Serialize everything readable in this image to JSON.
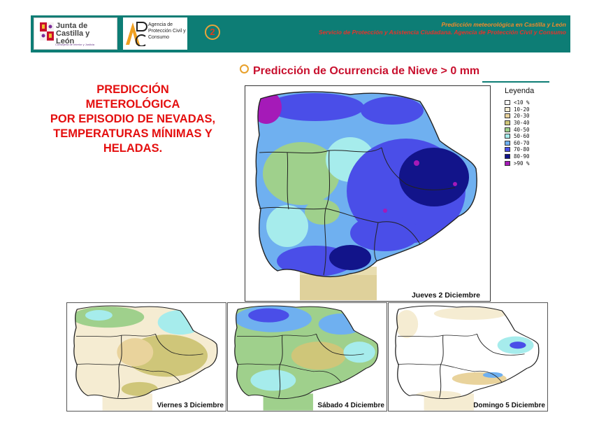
{
  "header": {
    "org_name": "Junta de Castilla y León",
    "org_subtitle": "Consejería de Interior y Justicia",
    "agency_name": "Agencia de Protección Civil y Consumo",
    "page_number": "2",
    "title": "Predicción meteorológica en Castilla y León",
    "subtitle": "Servicio de Protección y Asistencia Ciudadana. Agencia de Protección Civil y Consumo"
  },
  "heading": {
    "lines": [
      "PREDICCIÓN",
      "METEROLÓGICA",
      "POR EPISODIO DE NEVADAS,",
      "TEMPERATURAS MÍNIMAS Y",
      "HELADAS."
    ]
  },
  "map_section": {
    "title": "Predicción de Ocurrencia de Nieve > 0 mm",
    "accent_color": "#c8102e"
  },
  "legend": {
    "title": "Leyenda",
    "items": [
      {
        "label": "<10  %",
        "color": "#ffffff"
      },
      {
        "label": "10-20",
        "color": "#f5ecd2"
      },
      {
        "label": "20-30",
        "color": "#e9d39c"
      },
      {
        "label": "30-40",
        "color": "#cfc679"
      },
      {
        "label": "40-50",
        "color": "#9fd08c"
      },
      {
        "label": "50-60",
        "color": "#a6ecec"
      },
      {
        "label": "60-70",
        "color": "#6fb0f0"
      },
      {
        "label": "70-80",
        "color": "#4a4ee8"
      },
      {
        "label": "80-90",
        "color": "#12148a"
      },
      {
        "label": ">90  %",
        "color": "#a51ab8"
      }
    ]
  },
  "maps": [
    {
      "date": "Jueves 2 Diciembre"
    },
    {
      "date": "Viernes 3 Diciembre"
    },
    {
      "date": "Sábado 4 Diciembre"
    },
    {
      "date": "Domingo 5 Diciembre"
    }
  ]
}
